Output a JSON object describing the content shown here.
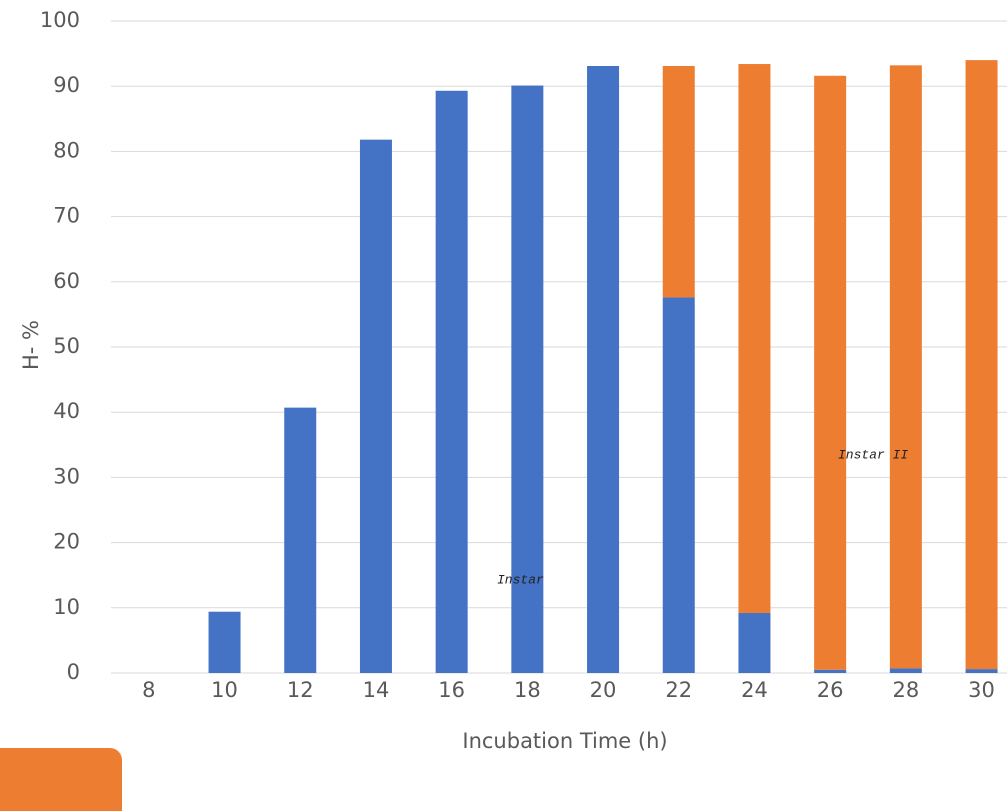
{
  "chart_data": {
    "type": "stacked_bar",
    "x_label": "Incubation Time (h)",
    "y_label": "H- %",
    "categories": [
      "8",
      "10",
      "12",
      "14",
      "16",
      "18",
      "20",
      "22",
      "24",
      "26",
      "28",
      "30"
    ],
    "series": [
      {
        "color": "#4472c4",
        "values": [
          0,
          9.4,
          40.7,
          81.8,
          89.3,
          90.1,
          93.1,
          57.6,
          9.2,
          0.5,
          0.7,
          0.6
        ]
      },
      {
        "color": "#ed7d31",
        "values": [
          0,
          0,
          0,
          0,
          0,
          0,
          0,
          35.5,
          84.2,
          91.1,
          92.5,
          93.4
        ]
      }
    ],
    "ylim": [
      0,
      100
    ],
    "yticks": [
      0,
      10,
      20,
      30,
      40,
      50,
      60,
      70,
      80,
      90,
      100
    ],
    "grid": true,
    "annotations": [
      "Instar",
      "Instar II"
    ]
  }
}
